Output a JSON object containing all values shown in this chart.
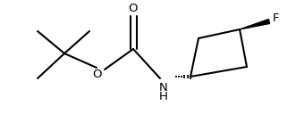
{
  "bg_color": "#ffffff",
  "line_color": "#000000",
  "line_width": 1.5,
  "font_size_label": 9.5,
  "label_O_carbonyl": "O",
  "label_O_ether": "O",
  "label_NH": "N\nH",
  "label_F": "F",
  "figsize": [
    3.31,
    1.28
  ],
  "dpi": 100
}
